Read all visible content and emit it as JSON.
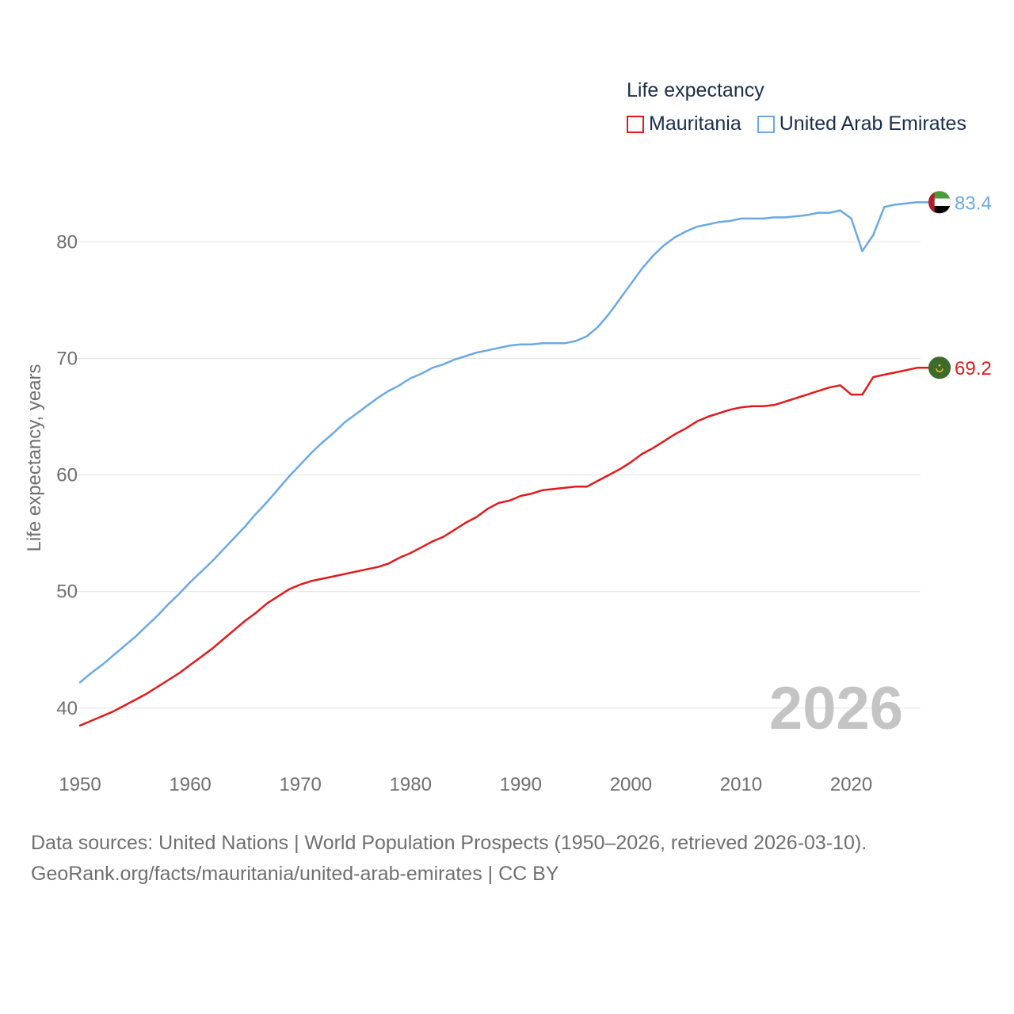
{
  "chart_data": {
    "type": "line",
    "title": "Life expectancy",
    "legend_title": "Life expectancy",
    "legend_position": "top-right",
    "ylabel": "Life expectancy, years",
    "xlabel": "",
    "xlim": [
      1950,
      2026
    ],
    "ylim": [
      35.5,
      87.5
    ],
    "x_ticks": [
      1950,
      1960,
      1970,
      1980,
      1990,
      2000,
      2010,
      2020
    ],
    "y_ticks": [
      40,
      50,
      60,
      70,
      80
    ],
    "grid": true,
    "year_watermark": "2026",
    "series": [
      {
        "name": "Mauritania",
        "color": "#e31a1c",
        "end_label": "69.2",
        "flag_icon": "mauritania-flag-icon",
        "points": [
          [
            1950,
            38.5
          ],
          [
            1951,
            38.9
          ],
          [
            1952,
            39.3
          ],
          [
            1953,
            39.7
          ],
          [
            1954,
            40.2
          ],
          [
            1955,
            40.7
          ],
          [
            1956,
            41.2
          ],
          [
            1957,
            41.8
          ],
          [
            1958,
            42.4
          ],
          [
            1959,
            43.0
          ],
          [
            1960,
            43.7
          ],
          [
            1961,
            44.4
          ],
          [
            1962,
            45.1
          ],
          [
            1963,
            45.9
          ],
          [
            1964,
            46.7
          ],
          [
            1965,
            47.5
          ],
          [
            1966,
            48.2
          ],
          [
            1967,
            49.0
          ],
          [
            1968,
            49.6
          ],
          [
            1969,
            50.2
          ],
          [
            1970,
            50.6
          ],
          [
            1971,
            50.9
          ],
          [
            1972,
            51.1
          ],
          [
            1973,
            51.3
          ],
          [
            1974,
            51.5
          ],
          [
            1975,
            51.7
          ],
          [
            1976,
            51.9
          ],
          [
            1977,
            52.1
          ],
          [
            1978,
            52.4
          ],
          [
            1979,
            52.9
          ],
          [
            1980,
            53.3
          ],
          [
            1981,
            53.8
          ],
          [
            1982,
            54.3
          ],
          [
            1983,
            54.7
          ],
          [
            1984,
            55.3
          ],
          [
            1985,
            55.9
          ],
          [
            1986,
            56.4
          ],
          [
            1987,
            57.1
          ],
          [
            1988,
            57.6
          ],
          [
            1989,
            57.8
          ],
          [
            1990,
            58.2
          ],
          [
            1991,
            58.4
          ],
          [
            1992,
            58.7
          ],
          [
            1993,
            58.8
          ],
          [
            1994,
            58.9
          ],
          [
            1995,
            59.0
          ],
          [
            1996,
            59.0
          ],
          [
            1997,
            59.5
          ],
          [
            1998,
            60.0
          ],
          [
            1999,
            60.5
          ],
          [
            2000,
            61.1
          ],
          [
            2001,
            61.8
          ],
          [
            2002,
            62.3
          ],
          [
            2003,
            62.9
          ],
          [
            2004,
            63.5
          ],
          [
            2005,
            64.0
          ],
          [
            2006,
            64.6
          ],
          [
            2007,
            65.0
          ],
          [
            2008,
            65.3
          ],
          [
            2009,
            65.6
          ],
          [
            2010,
            65.8
          ],
          [
            2011,
            65.9
          ],
          [
            2012,
            65.9
          ],
          [
            2013,
            66.0
          ],
          [
            2014,
            66.3
          ],
          [
            2015,
            66.6
          ],
          [
            2016,
            66.9
          ],
          [
            2017,
            67.2
          ],
          [
            2018,
            67.5
          ],
          [
            2019,
            67.7
          ],
          [
            2020,
            66.9
          ],
          [
            2021,
            66.9
          ],
          [
            2022,
            68.4
          ],
          [
            2023,
            68.6
          ],
          [
            2024,
            68.8
          ],
          [
            2025,
            69.0
          ],
          [
            2026,
            69.2
          ]
        ]
      },
      {
        "name": "United Arab Emirates",
        "color": "#6aa9e4",
        "end_label": "83.4",
        "flag_icon": "uae-flag-icon",
        "points": [
          [
            1950,
            42.2
          ],
          [
            1951,
            43.0
          ],
          [
            1952,
            43.7
          ],
          [
            1953,
            44.5
          ],
          [
            1954,
            45.3
          ],
          [
            1955,
            46.1
          ],
          [
            1956,
            47.0
          ],
          [
            1957,
            47.9
          ],
          [
            1958,
            48.9
          ],
          [
            1959,
            49.8
          ],
          [
            1960,
            50.8
          ],
          [
            1961,
            51.7
          ],
          [
            1962,
            52.6
          ],
          [
            1963,
            53.6
          ],
          [
            1964,
            54.6
          ],
          [
            1965,
            55.6
          ],
          [
            1966,
            56.7
          ],
          [
            1967,
            57.7
          ],
          [
            1968,
            58.8
          ],
          [
            1969,
            59.9
          ],
          [
            1970,
            60.9
          ],
          [
            1971,
            61.9
          ],
          [
            1972,
            62.8
          ],
          [
            1973,
            63.6
          ],
          [
            1974,
            64.5
          ],
          [
            1975,
            65.2
          ],
          [
            1976,
            65.9
          ],
          [
            1977,
            66.6
          ],
          [
            1978,
            67.2
          ],
          [
            1979,
            67.7
          ],
          [
            1980,
            68.3
          ],
          [
            1981,
            68.7
          ],
          [
            1982,
            69.2
          ],
          [
            1983,
            69.5
          ],
          [
            1984,
            69.9
          ],
          [
            1985,
            70.2
          ],
          [
            1986,
            70.5
          ],
          [
            1987,
            70.7
          ],
          [
            1988,
            70.9
          ],
          [
            1989,
            71.1
          ],
          [
            1990,
            71.2
          ],
          [
            1991,
            71.2
          ],
          [
            1992,
            71.3
          ],
          [
            1993,
            71.3
          ],
          [
            1994,
            71.3
          ],
          [
            1995,
            71.5
          ],
          [
            1996,
            71.9
          ],
          [
            1997,
            72.7
          ],
          [
            1998,
            73.8
          ],
          [
            1999,
            75.1
          ],
          [
            2000,
            76.4
          ],
          [
            2001,
            77.7
          ],
          [
            2002,
            78.8
          ],
          [
            2003,
            79.7
          ],
          [
            2004,
            80.4
          ],
          [
            2005,
            80.9
          ],
          [
            2006,
            81.3
          ],
          [
            2007,
            81.5
          ],
          [
            2008,
            81.7
          ],
          [
            2009,
            81.8
          ],
          [
            2010,
            82.0
          ],
          [
            2011,
            82.0
          ],
          [
            2012,
            82.0
          ],
          [
            2013,
            82.1
          ],
          [
            2014,
            82.1
          ],
          [
            2015,
            82.2
          ],
          [
            2016,
            82.3
          ],
          [
            2017,
            82.5
          ],
          [
            2018,
            82.5
          ],
          [
            2019,
            82.7
          ],
          [
            2020,
            82.0
          ],
          [
            2021,
            79.2
          ],
          [
            2022,
            80.6
          ],
          [
            2023,
            83.0
          ],
          [
            2024,
            83.2
          ],
          [
            2025,
            83.3
          ],
          [
            2026,
            83.4
          ]
        ]
      }
    ]
  },
  "footer": {
    "source_line": "Data sources: United Nations | World Population Prospects (1950–2026, retrieved 2026-03-10).",
    "url_line": "GeoRank.org/facts/mauritania/united-arab-emirates | CC BY"
  }
}
